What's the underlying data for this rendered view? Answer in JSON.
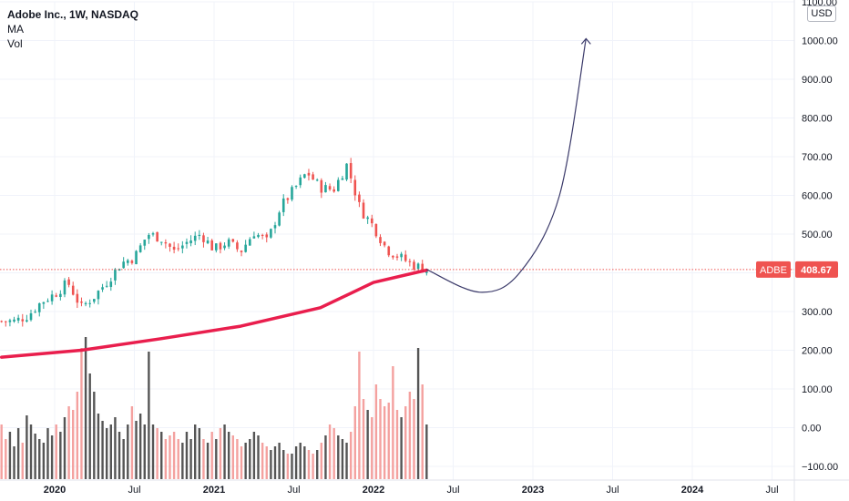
{
  "legend": {
    "title": "Adobe Inc., 1W, NASDAQ",
    "ma_label": "MA",
    "vol_label": "Vol"
  },
  "currency_button": "USD",
  "price_label": {
    "symbol": "ADBE",
    "value": "408.67"
  },
  "colors": {
    "up": "#26a69a",
    "down": "#ef5350",
    "ma": "#e91e4d",
    "projection": "#3b3a6a",
    "price_line": "#ef5350",
    "vol_up": "#555555",
    "vol_down": "#f4a19f",
    "grid": "#f0f3fa"
  },
  "chart_data": {
    "type": "candlestick",
    "title": "Adobe Inc., 1W, NASDAQ",
    "y_axis": {
      "ticks": [
        "1100.00",
        "1000.00",
        "900.00",
        "800.00",
        "700.00",
        "600.00",
        "500.00",
        "400.00",
        "300.00",
        "200.00",
        "100.00",
        "0.00",
        "−100.00"
      ],
      "range": [
        -115,
        1120
      ],
      "position": "right"
    },
    "x_axis": {
      "ticks": [
        {
          "label": "2020",
          "major": true
        },
        {
          "label": "Jul",
          "major": false
        },
        {
          "label": "2021",
          "major": true
        },
        {
          "label": "Jul",
          "major": false
        },
        {
          "label": "2022",
          "major": true
        },
        {
          "label": "Jul",
          "major": false
        },
        {
          "label": "2023",
          "major": true
        },
        {
          "label": "Jul",
          "major": false
        },
        {
          "label": "2024",
          "major": true
        },
        {
          "label": "Jul",
          "major": false
        }
      ],
      "range": [
        "2019-09",
        "2024-08"
      ]
    },
    "last_price": 408.67,
    "price_path": [
      [
        "2019-09",
        275
      ],
      [
        "2019-10",
        275
      ],
      [
        "2019-11",
        290
      ],
      [
        "2019-12",
        325
      ],
      [
        "2020-01",
        345
      ],
      [
        "2020-02",
        375
      ],
      [
        "2020-03",
        310
      ],
      [
        "2020-04",
        340
      ],
      [
        "2020-05",
        380
      ],
      [
        "2020-06",
        425
      ],
      [
        "2020-07",
        440
      ],
      [
        "2020-08",
        500
      ],
      [
        "2020-09",
        490
      ],
      [
        "2020-10",
        455
      ],
      [
        "2020-11",
        480
      ],
      [
        "2020-12",
        500
      ],
      [
        "2021-01",
        460
      ],
      [
        "2021-02",
        480
      ],
      [
        "2021-03",
        455
      ],
      [
        "2021-04",
        505
      ],
      [
        "2021-05",
        480
      ],
      [
        "2021-06",
        570
      ],
      [
        "2021-07",
        615
      ],
      [
        "2021-08",
        660
      ],
      [
        "2021-09",
        620
      ],
      [
        "2021-10",
        615
      ],
      [
        "2021-11",
        680
      ],
      [
        "2021-12",
        565
      ],
      [
        "2022-01",
        520
      ],
      [
        "2022-02",
        460
      ],
      [
        "2022-03",
        440
      ],
      [
        "2022-04",
        420
      ],
      [
        "2022-05",
        408.67
      ]
    ],
    "ma_path": [
      [
        "2019-09",
        182
      ],
      [
        "2020-03",
        200
      ],
      [
        "2020-09",
        230
      ],
      [
        "2021-03",
        262
      ],
      [
        "2021-09",
        310
      ],
      [
        "2022-01",
        375
      ],
      [
        "2022-05",
        407
      ]
    ],
    "projection_path": [
      [
        "2022-05",
        408.67
      ],
      [
        "2022-09",
        350
      ],
      [
        "2022-12",
        400
      ],
      [
        "2023-03",
        600
      ],
      [
        "2023-05",
        1005
      ]
    ],
    "volume_relative": [
      0.3,
      0.22,
      0.26,
      0.18,
      0.28,
      0.2,
      0.35,
      0.3,
      0.25,
      0.22,
      0.2,
      0.28,
      0.24,
      0.3,
      0.26,
      0.34,
      0.4,
      0.38,
      0.48,
      0.72,
      0.78,
      0.58,
      0.48,
      0.36,
      0.32,
      0.28,
      0.3,
      0.34,
      0.26,
      0.22,
      0.3,
      0.4,
      0.32,
      0.36,
      0.3,
      0.7,
      0.3,
      0.28,
      0.26,
      0.22,
      0.24,
      0.26,
      0.22,
      0.2,
      0.26,
      0.22,
      0.3,
      0.28,
      0.22,
      0.2,
      0.26,
      0.22,
      0.28,
      0.3,
      0.26,
      0.24,
      0.22,
      0.18,
      0.2,
      0.22,
      0.26,
      0.24,
      0.2,
      0.18,
      0.16,
      0.18,
      0.2,
      0.16,
      0.14,
      0.14,
      0.18,
      0.2,
      0.18,
      0.16,
      0.14,
      0.16,
      0.2,
      0.24,
      0.3,
      0.28,
      0.24,
      0.22,
      0.2,
      0.26,
      0.4,
      0.7,
      0.44,
      0.38,
      0.34,
      0.52,
      0.44,
      0.4,
      0.42,
      0.62,
      0.38,
      0.34,
      0.4,
      0.48,
      0.44,
      0.72,
      0.52,
      0.3
    ]
  }
}
